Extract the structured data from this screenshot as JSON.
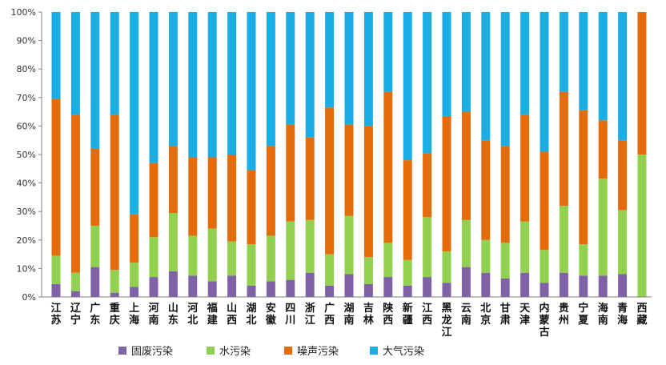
{
  "chart_data": {
    "type": "bar",
    "stacked": true,
    "normalized": true,
    "categories": [
      "江苏",
      "辽宁",
      "广东",
      "重庆",
      "上海",
      "河南",
      "山东",
      "河北",
      "福建",
      "山西",
      "湖北",
      "安徽",
      "四川",
      "浙江",
      "广西",
      "湖南",
      "吉林",
      "陕西",
      "新疆",
      "江西",
      "黑龙江",
      "云南",
      "北京",
      "甘肃",
      "天津",
      "内蒙古",
      "贵州",
      "宁夏",
      "海南",
      "青海",
      "西藏"
    ],
    "y_ticks": [
      "0%",
      "10%",
      "20%",
      "30%",
      "40%",
      "50%",
      "60%",
      "70%",
      "80%",
      "90%",
      "100%"
    ],
    "ylim": [
      0,
      100
    ],
    "grid": false,
    "legend_position": "bottom",
    "series": [
      {
        "name": "固废污染",
        "color": "#7f62a6",
        "values": [
          4.5,
          2,
          10.5,
          1.5,
          3.5,
          7,
          9,
          7.5,
          5.5,
          7.5,
          4,
          5.5,
          6,
          8.5,
          4,
          8,
          4.5,
          7,
          4,
          7,
          5,
          10.5,
          8.5,
          6.5,
          8.5,
          5,
          8.5,
          7.5,
          7.5,
          8,
          0
        ]
      },
      {
        "name": "水污染",
        "color": "#92d050",
        "values": [
          10,
          6.5,
          14.5,
          8,
          8.5,
          14,
          20.5,
          14,
          18.5,
          12,
          14.5,
          16,
          20.5,
          18.5,
          11,
          20.5,
          9.5,
          12,
          9,
          21,
          11,
          16.5,
          11.5,
          12.5,
          18,
          11.5,
          23.5,
          11,
          34,
          22.5,
          50
        ]
      },
      {
        "name": "噪声污染",
        "color": "#e46c0a",
        "values": [
          55,
          55.5,
          27,
          54.5,
          17,
          26,
          23.5,
          27.5,
          25,
          30.5,
          26,
          31.5,
          34,
          29,
          51.5,
          32,
          46,
          53,
          35,
          22.5,
          47.5,
          38,
          35,
          34,
          37.5,
          34.5,
          40,
          47,
          20.5,
          24.5,
          50
        ]
      },
      {
        "name": "大气污染",
        "color": "#1aaee5",
        "values": [
          30.5,
          36,
          48,
          36,
          71,
          53,
          47,
          51,
          51,
          50,
          55.5,
          47,
          39.5,
          44,
          33.5,
          39.5,
          40,
          28,
          52,
          49.5,
          36.5,
          35,
          45,
          47,
          36,
          49,
          28,
          34.5,
          38,
          45,
          0
        ]
      }
    ]
  }
}
